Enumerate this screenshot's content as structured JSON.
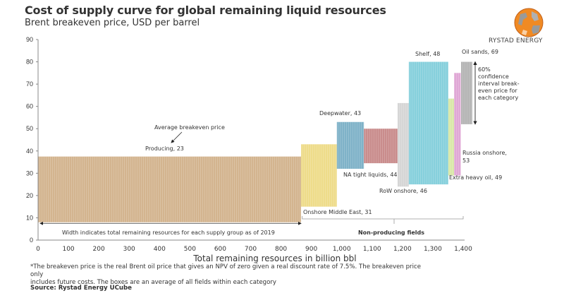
{
  "header": {
    "title": "Cost of supply curve for global remaining liquid resources",
    "subtitle": "Brent breakeven price, USD per barrel",
    "logo_text": "RYSTAD ENERGY"
  },
  "chart_data": {
    "type": "bar",
    "subtype": "variable-width floating boxes (cost of supply curve)",
    "title": "Cost of supply curve for global remaining liquid resources",
    "ylabel": "Brent breakeven price, USD per barrel",
    "xlabel": "Total remaining resources in billion bbl",
    "xlim": [
      0,
      1400
    ],
    "ylim": [
      0,
      90
    ],
    "x_ticks": [
      0,
      100,
      200,
      300,
      400,
      500,
      600,
      700,
      800,
      900,
      1000,
      1100,
      1200,
      1300,
      1400
    ],
    "x_tick_labels": [
      "0",
      "100",
      "200",
      "300",
      "400",
      "500",
      "600",
      "700",
      "800",
      "900",
      "1,000",
      "1,100",
      "1,200",
      "1,300",
      "1,400"
    ],
    "y_ticks": [
      0,
      10,
      20,
      30,
      40,
      50,
      60,
      70,
      80,
      90
    ],
    "y_tick_labels": [
      "0",
      "10",
      "20",
      "30",
      "40",
      "50",
      "60",
      "70",
      "80",
      "90"
    ],
    "grid": false,
    "series": [
      {
        "name": "Producing",
        "label": "Producing, 23",
        "avg": 23,
        "x_start": 0,
        "x_end": 866,
        "low": 8,
        "high": 37.5,
        "color": "#d3b48f"
      },
      {
        "name": "Onshore Middle East",
        "label": "Onshore Middle East, 31",
        "avg": 31,
        "x_start": 866,
        "x_end": 984,
        "low": 15,
        "high": 43,
        "color": "#eedc8a"
      },
      {
        "name": "Deepwater",
        "label": "Deepwater, 43",
        "avg": 43,
        "x_start": 984,
        "x_end": 1073,
        "low": 32,
        "high": 53,
        "color": "#7fb2c8"
      },
      {
        "name": "NA tight liquids",
        "label": "NA tight liquids, 44",
        "avg": 44,
        "x_start": 1073,
        "x_end": 1184,
        "low": 34.5,
        "high": 50,
        "color": "#c98c8c"
      },
      {
        "name": "RoW onshore",
        "label": "RoW onshore, 46",
        "avg": 46,
        "x_start": 1184,
        "x_end": 1221,
        "low": 24,
        "high": 61.5,
        "color": "#d6d6d6"
      },
      {
        "name": "Shelf",
        "label": "Shelf, 48",
        "avg": 48,
        "x_start": 1221,
        "x_end": 1351,
        "low": 25,
        "high": 80,
        "color": "#86d0dc"
      },
      {
        "name": "Extra heavy oil",
        "label": "Extra heavy oil, 49",
        "avg": 49,
        "x_start": 1351,
        "x_end": 1370,
        "low": 29,
        "high": 63.5,
        "color": "#d9e8a8"
      },
      {
        "name": "Russia onshore",
        "label": "Russia onshore, 53",
        "avg": 53,
        "x_start": 1370,
        "x_end": 1392,
        "low": 29,
        "high": 75,
        "color": "#e0a8d6"
      },
      {
        "name": "Oil sands",
        "label": "Oil sands, 69",
        "avg": 69,
        "x_start": 1393,
        "x_end": 1430,
        "low": 52,
        "high": 80,
        "color": "#b4b4b4"
      }
    ],
    "annotations": {
      "average_price": "Average breakeven price",
      "confidence": [
        "60%",
        "confidence",
        "interval break-",
        "even price for",
        "each category"
      ],
      "width_note": "Width indicates total remaining resources for each supply group as of 2019",
      "non_producing": "Non-producing fields"
    }
  },
  "footer": {
    "note_line1": "*The breakeven price is the real Brent oil price that gives an NPV of zero given a real discount rate of 7.5%. The breakeven price only",
    "note_line2": "includes future costs. The boxes are an average of all fields within each category",
    "source": "Source: Rystad Energy UCube"
  }
}
